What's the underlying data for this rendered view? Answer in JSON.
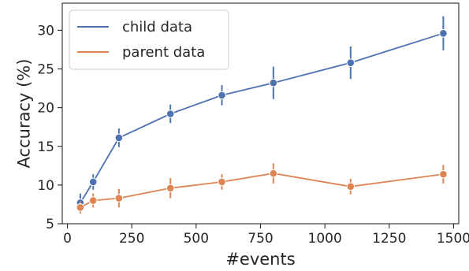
{
  "chart_data": {
    "type": "line",
    "title": "",
    "xlabel": "#events",
    "ylabel": "Accuracy (%)",
    "xlim": [
      -20,
      1520
    ],
    "ylim": [
      5,
      33.5
    ],
    "xticks": [
      0,
      250,
      500,
      750,
      1000,
      1250,
      1500
    ],
    "yticks": [
      5,
      10,
      15,
      20,
      25,
      30
    ],
    "grid": false,
    "legend_position": "top-left",
    "series": [
      {
        "name": "child data",
        "color": "#4c72b0",
        "x": [
          50,
          100,
          200,
          400,
          600,
          800,
          1100,
          1460
        ],
        "y": [
          7.7,
          10.4,
          16.1,
          19.2,
          21.6,
          23.2,
          25.8,
          29.6
        ],
        "err": [
          1.2,
          1.0,
          1.2,
          1.2,
          1.3,
          2.1,
          2.1,
          2.2
        ]
      },
      {
        "name": "parent data",
        "color": "#dd8452",
        "x": [
          50,
          100,
          200,
          400,
          600,
          800,
          1100,
          1460
        ],
        "y": [
          7.1,
          8.0,
          8.3,
          9.6,
          10.4,
          11.5,
          9.8,
          11.4
        ],
        "err": [
          0.8,
          0.9,
          1.2,
          1.3,
          1.0,
          1.3,
          1.0,
          1.2
        ]
      }
    ]
  }
}
